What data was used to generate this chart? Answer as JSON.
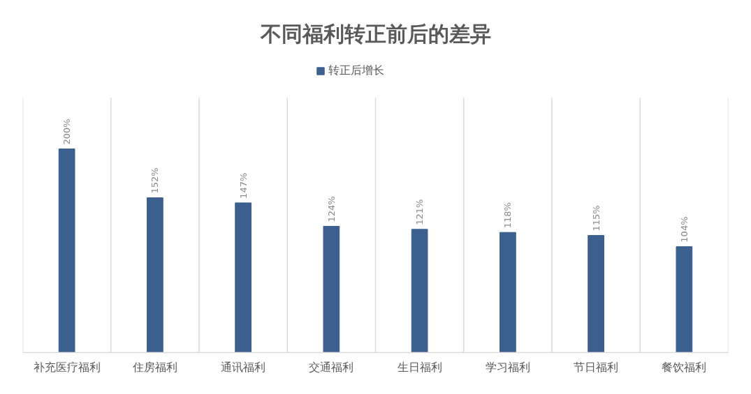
{
  "chart_data": {
    "type": "bar",
    "title": "不同福利转正前后的差异",
    "categories": [
      "补充医疗福利",
      "住房福利",
      "通讯福利",
      "交通福利",
      "生日福利",
      "学习福利",
      "节日福利",
      "餐饮福利"
    ],
    "series": [
      {
        "name": "转正后增长",
        "color": "#3b5f8f",
        "values": [
          200,
          152,
          147,
          124,
          121,
          118,
          115,
          104
        ],
        "value_labels": [
          "200%",
          "152%",
          "147%",
          "124%",
          "121%",
          "118%",
          "115%",
          "104%"
        ]
      }
    ],
    "ylim": [
      0,
      250
    ],
    "tick_labels": "x",
    "grid": "x",
    "legend": "top"
  }
}
